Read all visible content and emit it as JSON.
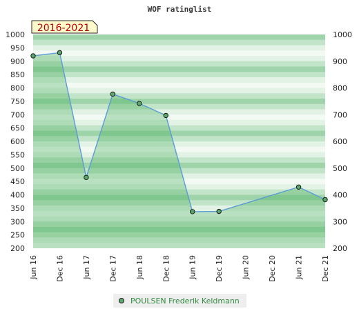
{
  "chart_data": {
    "type": "area",
    "title": "WOF ratinglist",
    "period_label": "2016-2021",
    "x_tick_labels": [
      "Jun 16",
      "Dec 16",
      "Jun 17",
      "Dec 17",
      "Jun 18",
      "Dec 18",
      "Jun 19",
      "Dec 19",
      "Jun 20",
      "Dec 20",
      "Jun 21",
      "Dec 21"
    ],
    "ylim": [
      200,
      1000
    ],
    "y_ticks_left": [
      1000,
      950,
      900,
      850,
      800,
      750,
      700,
      650,
      600,
      550,
      500,
      450,
      400,
      350,
      300,
      250,
      200
    ],
    "y_ticks_right": [
      1000,
      900,
      800,
      700,
      600,
      500,
      400,
      300,
      200
    ],
    "series": [
      {
        "name": "POULSEN Frederik Keldmann",
        "x": [
          "Jun 16",
          "Dec 16",
          "Jun 17",
          "Dec 17",
          "Jun 18",
          "Dec 18",
          "Jun 19",
          "Dec 19",
          "Jun 21",
          "Dec 21"
        ],
        "values": [
          920,
          932,
          465,
          777,
          742,
          697,
          337,
          338,
          429,
          382
        ]
      }
    ],
    "colors": {
      "line": "#5b9bd5",
      "marker_fill": "#5aa86a",
      "fill": "#3daa55",
      "band_dark": "#9fd4ab",
      "band_mid": "#c2e4c8",
      "band_light": "#e2f2e5",
      "band_pale": "#f3faf4"
    },
    "legend_position": "bottom-center",
    "grid": false
  }
}
